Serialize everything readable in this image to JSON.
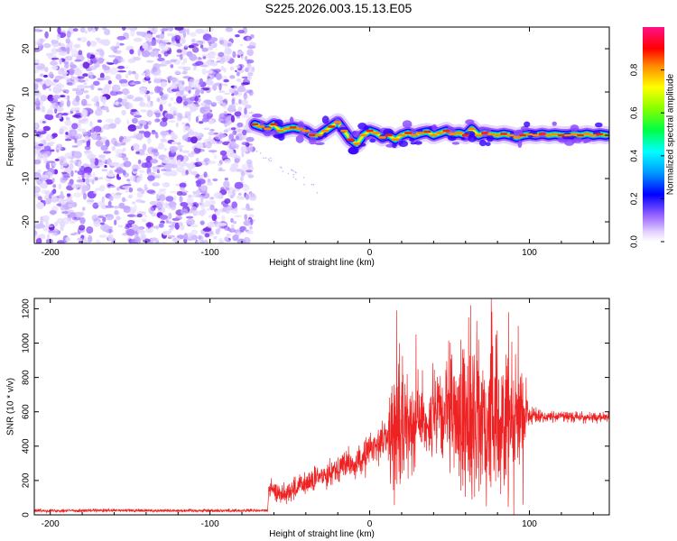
{
  "title": "S225.2026.003.15.13.E05",
  "chart_data": [
    {
      "type": "heatmap",
      "name": "spectrogram",
      "xlabel": "Height of straight line (km)",
      "ylabel": "Frequency (Hz)",
      "xlim": [
        -210,
        150
      ],
      "ylim": [
        -25,
        25
      ],
      "xticks": [
        -200,
        -100,
        0,
        100
      ],
      "yticks": [
        -20,
        -10,
        0,
        10,
        20
      ],
      "noise_region": [
        -210,
        -73
      ],
      "trace": {
        "x": [
          -72,
          -68,
          -64,
          -60,
          -56,
          -52,
          -48,
          -44,
          -40,
          -36,
          -32,
          -28,
          -24,
          -20,
          -16,
          -12,
          -8,
          -4,
          0,
          4,
          8,
          12,
          16,
          20,
          24,
          28,
          32,
          36,
          40,
          44,
          48,
          52,
          56,
          60,
          64,
          68,
          72,
          76,
          80,
          84,
          88,
          92,
          96,
          100,
          104,
          108,
          112,
          116,
          120,
          124,
          128,
          132,
          136,
          140,
          144,
          148
        ],
        "freq": [
          2.5,
          2.0,
          1.5,
          2.5,
          1.0,
          1.5,
          1.8,
          1.5,
          1.0,
          0.0,
          0.0,
          1.0,
          2.0,
          3.0,
          1.0,
          -1.0,
          -2.0,
          0.0,
          1.0,
          0.5,
          -0.5,
          0.0,
          -1.0,
          0.0,
          0.5,
          0.0,
          0.5,
          0.8,
          0.0,
          0.5,
          1.0,
          0.3,
          0.5,
          0.0,
          1.5,
          0.0,
          0.5,
          0.2,
          0.0,
          0.3,
          0.0,
          -0.5,
          0.0,
          0.2,
          0.0,
          0.3,
          0.0,
          0.2,
          0.0,
          0.0,
          0.2,
          0.0,
          0.3,
          0.0,
          0.2,
          0.0
        ]
      },
      "colorbar": {
        "label": "Normalized spectral amplitude",
        "range": [
          0.0,
          1.0
        ],
        "ticks": [
          "0.0",
          "0.2",
          "0.4",
          "0.6",
          "0.8"
        ]
      }
    },
    {
      "type": "line",
      "name": "snr",
      "xlabel": "Height of straight line (km)",
      "ylabel": "SNR (10 * v/v)",
      "xlim": [
        -210,
        150
      ],
      "ylim": [
        0,
        1260
      ],
      "xticks": [
        -200,
        -100,
        0,
        100
      ],
      "yticks": [
        0,
        200,
        400,
        600,
        800,
        1000,
        1200
      ],
      "color": "#ee2222",
      "envelope": {
        "x": [
          -210,
          -64,
          -63,
          -55,
          -45,
          -35,
          -25,
          -15,
          -10,
          -5,
          0,
          5,
          10,
          15,
          20,
          30,
          40,
          50,
          60,
          70,
          80,
          90,
          95,
          100,
          110,
          120,
          130,
          140,
          150
        ],
        "mean": [
          25,
          25,
          150,
          120,
          160,
          200,
          250,
          300,
          280,
          320,
          380,
          420,
          450,
          480,
          520,
          560,
          550,
          580,
          560,
          570,
          560,
          580,
          590,
          580,
          570,
          575,
          570,
          565,
          570
        ],
        "noise": [
          8,
          8,
          40,
          50,
          60,
          60,
          60,
          70,
          70,
          80,
          80,
          90,
          100,
          300,
          300,
          180,
          220,
          280,
          380,
          400,
          380,
          380,
          250,
          40,
          25,
          25,
          25,
          25,
          25
        ]
      },
      "spikes": [
        {
          "x": 17,
          "y": 1190
        },
        {
          "x": 19,
          "y": 180
        },
        {
          "x": 29,
          "y": 1050
        },
        {
          "x": 31,
          "y": 700
        },
        {
          "x": 62,
          "y": 1150
        },
        {
          "x": 64,
          "y": 90
        },
        {
          "x": 67,
          "y": 1130
        },
        {
          "x": 73,
          "y": 50
        },
        {
          "x": 76,
          "y": 1260
        },
        {
          "x": 79,
          "y": 1050
        },
        {
          "x": 82,
          "y": 120
        },
        {
          "x": 87,
          "y": 1180
        },
        {
          "x": 93,
          "y": 1100
        },
        {
          "x": 96,
          "y": 60
        },
        {
          "x": 98,
          "y": 800
        }
      ]
    }
  ]
}
